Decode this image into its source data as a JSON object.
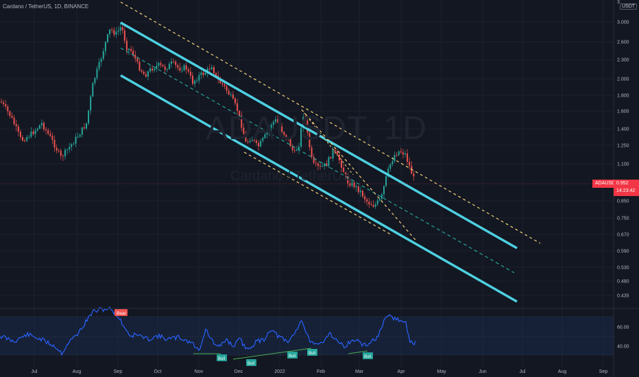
{
  "title": "Cardano / TetherUS, 1D, BINANCE",
  "watermark": {
    "symbol": "ADAUSDT, 1D",
    "name": "Cardano / TetherUS"
  },
  "axis": {
    "unit_top": "3",
    "unit": "USDT",
    "price_ticks": [
      "3.000",
      "2.600",
      "2.300",
      "2.000",
      "1.800",
      "1.600",
      "1.400",
      "1.250",
      "1.100",
      "0.850",
      "0.750",
      "0.670",
      "0.590",
      "0.530",
      "0.480",
      "0.435"
    ],
    "osc_ticks": [
      "60.00",
      "40.00"
    ],
    "date_ticks": [
      "Jul",
      "Aug",
      "Sep",
      "Oct",
      "Nov",
      "Dec",
      "2022",
      "Feb",
      "Mar",
      "Apr",
      "May",
      "Jun",
      "Jul",
      "Aug",
      "Sep"
    ]
  },
  "last_price": {
    "symbol": "ADAUSDT",
    "value": "0.952",
    "countdown": "14:23:42"
  },
  "oscillator_labels": {
    "bear": "Bear",
    "bulls": [
      "Bull",
      "Bull",
      "Bull",
      "Bull",
      "Bull"
    ]
  },
  "colors": {
    "background": "#131722",
    "up_candle": "#26a69a",
    "down_candle": "#ef5350",
    "channel": "#4dd0e1",
    "dashed_yellow": "#f7d37a",
    "rsi_line": "#2962ff",
    "divergence": "#4caf50",
    "price_line": "#f23645"
  }
}
